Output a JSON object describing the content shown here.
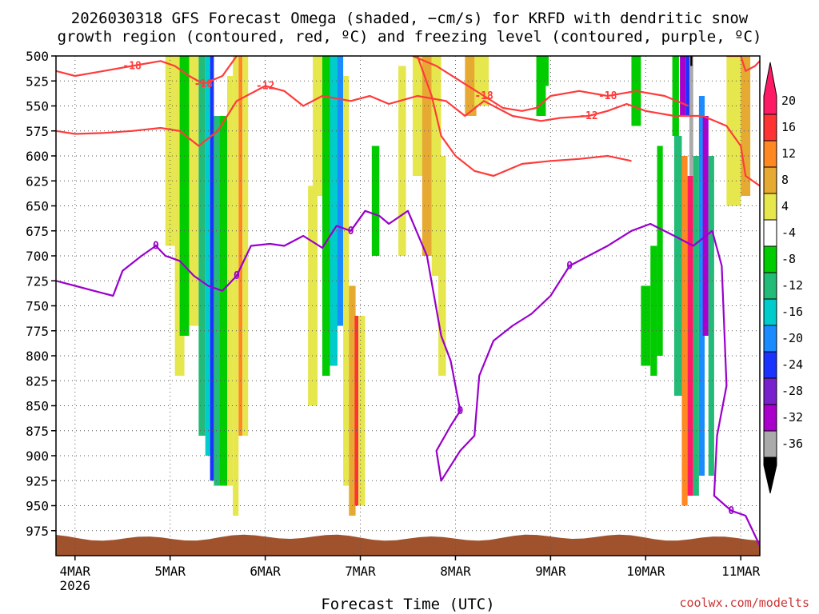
{
  "chart_data": {
    "type": "heatmap",
    "title_line1": "2026030318 GFS Forecast Omega (shaded, −cm/s) for KRFD with dendritic snow",
    "title_line2": "growth region (contoured, red, ºC) and freezing level (contoured, purple, ºC)",
    "xlabel": "Forecast Time (UTC)",
    "year_label": "2026",
    "credit": "coolwx.com/modelts",
    "x_unit": "days after 4MAR 00Z",
    "xlim": [
      -0.2,
      7.2
    ],
    "x_ticks": [
      {
        "value": 0,
        "label": "4MAR"
      },
      {
        "value": 1,
        "label": "5MAR"
      },
      {
        "value": 2,
        "label": "6MAR"
      },
      {
        "value": 3,
        "label": "7MAR"
      },
      {
        "value": 4,
        "label": "8MAR"
      },
      {
        "value": 5,
        "label": "9MAR"
      },
      {
        "value": 6,
        "label": "10MAR"
      },
      {
        "value": 7,
        "label": "11MAR"
      }
    ],
    "ylim": [
      500,
      1000
    ],
    "y_ticks": [
      "500",
      "525",
      "550",
      "575",
      "600",
      "625",
      "650",
      "675",
      "700",
      "725",
      "750",
      "775",
      "800",
      "825",
      "850",
      "875",
      "900",
      "925",
      "950",
      "975"
    ],
    "colorbar": {
      "labels": [
        "20",
        "16",
        "12",
        "8",
        "4",
        "-4",
        "-8",
        "-12",
        "-16",
        "-20",
        "-24",
        "-28",
        "-32",
        "-36"
      ],
      "colors": [
        "#ff1a66",
        "#ff3333",
        "#ff8822",
        "#e6aa33",
        "#e6e64d",
        "#ffffff",
        "#00cc00",
        "#22bb77",
        "#00cccc",
        "#1a8cff",
        "#1a33ff",
        "#7722cc",
        "#aa00cc",
        "#aaaaaa",
        "#000000"
      ]
    },
    "omega_cells": [
      {
        "t0": 0.95,
        "t1": 1.05,
        "p0": 500,
        "p1": 690,
        "v": 6
      },
      {
        "t0": 1.05,
        "t1": 1.15,
        "p0": 500,
        "p1": 820,
        "v": 5
      },
      {
        "t0": 1.1,
        "t1": 1.2,
        "p0": 500,
        "p1": 780,
        "v": -6
      },
      {
        "t0": 1.2,
        "t1": 1.3,
        "p0": 500,
        "p1": 770,
        "v": 6
      },
      {
        "t0": 1.3,
        "t1": 1.37,
        "p0": 500,
        "p1": 880,
        "v": -8
      },
      {
        "t0": 1.37,
        "t1": 1.42,
        "p0": 500,
        "p1": 900,
        "v": -14
      },
      {
        "t0": 1.42,
        "t1": 1.46,
        "p0": 500,
        "p1": 925,
        "v": -20
      },
      {
        "t0": 1.46,
        "t1": 1.52,
        "p0": 560,
        "p1": 930,
        "v": -10
      },
      {
        "t0": 1.52,
        "t1": 1.6,
        "p0": 560,
        "p1": 930,
        "v": -6
      },
      {
        "t0": 1.6,
        "t1": 1.66,
        "p0": 520,
        "p1": 930,
        "v": 6
      },
      {
        "t0": 1.66,
        "t1": 1.72,
        "p0": 500,
        "p1": 960,
        "v": 7
      },
      {
        "t0": 1.72,
        "t1": 1.76,
        "p0": 500,
        "p1": 880,
        "v": 14
      },
      {
        "t0": 1.76,
        "t1": 1.82,
        "p0": 500,
        "p1": 880,
        "v": 7
      },
      {
        "t0": 2.45,
        "t1": 2.55,
        "p0": 630,
        "p1": 850,
        "v": 6
      },
      {
        "t0": 2.5,
        "t1": 2.6,
        "p0": 500,
        "p1": 640,
        "v": 6
      },
      {
        "t0": 2.6,
        "t1": 2.68,
        "p0": 500,
        "p1": 820,
        "v": -6
      },
      {
        "t0": 2.68,
        "t1": 2.76,
        "p0": 500,
        "p1": 810,
        "v": -12
      },
      {
        "t0": 2.76,
        "t1": 2.82,
        "p0": 500,
        "p1": 770,
        "v": -16
      },
      {
        "t0": 2.82,
        "t1": 2.88,
        "p0": 520,
        "p1": 930,
        "v": 5
      },
      {
        "t0": 2.88,
        "t1": 2.95,
        "p0": 730,
        "p1": 960,
        "v": 8
      },
      {
        "t0": 2.94,
        "t1": 2.98,
        "p0": 760,
        "p1": 950,
        "v": 18
      },
      {
        "t0": 2.98,
        "t1": 3.05,
        "p0": 760,
        "p1": 950,
        "v": 6
      },
      {
        "t0": 3.12,
        "t1": 3.2,
        "p0": 590,
        "p1": 700,
        "v": -6
      },
      {
        "t0": 3.4,
        "t1": 3.48,
        "p0": 510,
        "p1": 700,
        "v": 5
      },
      {
        "t0": 3.55,
        "t1": 3.65,
        "p0": 500,
        "p1": 620,
        "v": 7
      },
      {
        "t0": 3.65,
        "t1": 3.75,
        "p0": 500,
        "p1": 700,
        "v": 10
      },
      {
        "t0": 3.75,
        "t1": 3.85,
        "p0": 500,
        "p1": 720,
        "v": 6
      },
      {
        "t0": 3.82,
        "t1": 3.9,
        "p0": 600,
        "p1": 820,
        "v": 5
      },
      {
        "t0": 4.1,
        "t1": 4.22,
        "p0": 500,
        "p1": 560,
        "v": 9
      },
      {
        "t0": 4.2,
        "t1": 4.35,
        "p0": 500,
        "p1": 550,
        "v": 6
      },
      {
        "t0": 4.85,
        "t1": 4.95,
        "p0": 500,
        "p1": 560,
        "v": -6
      },
      {
        "t0": 4.9,
        "t1": 4.98,
        "p0": 500,
        "p1": 530,
        "v": -6
      },
      {
        "t0": 5.85,
        "t1": 5.95,
        "p0": 500,
        "p1": 570,
        "v": -6
      },
      {
        "t0": 5.95,
        "t1": 6.05,
        "p0": 730,
        "p1": 810,
        "v": -6
      },
      {
        "t0": 6.05,
        "t1": 6.12,
        "p0": 690,
        "p1": 820,
        "v": -6
      },
      {
        "t0": 6.12,
        "t1": 6.18,
        "p0": 590,
        "p1": 800,
        "v": -6
      },
      {
        "t0": 6.28,
        "t1": 6.35,
        "p0": 500,
        "p1": 580,
        "v": -6
      },
      {
        "t0": 6.3,
        "t1": 6.38,
        "p0": 580,
        "p1": 840,
        "v": -8
      },
      {
        "t0": 6.36,
        "t1": 6.42,
        "p0": 500,
        "p1": 560,
        "v": -28
      },
      {
        "t0": 6.42,
        "t1": 6.46,
        "p0": 500,
        "p1": 560,
        "v": -20
      },
      {
        "t0": 6.38,
        "t1": 6.44,
        "p0": 600,
        "p1": 950,
        "v": 12
      },
      {
        "t0": 6.44,
        "t1": 6.5,
        "p0": 620,
        "p1": 940,
        "v": 20
      },
      {
        "t0": 6.46,
        "t1": 6.5,
        "p0": 500,
        "p1": 620,
        "v": -34
      },
      {
        "t0": 6.47,
        "t1": 6.49,
        "p0": 500,
        "p1": 510,
        "v": -38
      },
      {
        "t0": 6.5,
        "t1": 6.56,
        "p0": 600,
        "p1": 940,
        "v": -10
      },
      {
        "t0": 6.56,
        "t1": 6.62,
        "p0": 540,
        "p1": 920,
        "v": -18
      },
      {
        "t0": 6.6,
        "t1": 6.66,
        "p0": 560,
        "p1": 780,
        "v": -28
      },
      {
        "t0": 6.66,
        "t1": 6.72,
        "p0": 600,
        "p1": 920,
        "v": -10
      },
      {
        "t0": 6.85,
        "t1": 7.0,
        "p0": 500,
        "p1": 650,
        "v": 6
      },
      {
        "t0": 7.0,
        "t1": 7.1,
        "p0": 500,
        "p1": 640,
        "v": 10
      }
    ],
    "dgz_contours": [
      {
        "label": "-12",
        "points": [
          [
            -0.2,
            575
          ],
          [
            0.0,
            578
          ],
          [
            0.3,
            577
          ],
          [
            0.6,
            575
          ],
          [
            0.9,
            572
          ],
          [
            1.1,
            575
          ],
          [
            1.3,
            590
          ],
          [
            1.5,
            575
          ],
          [
            1.7,
            545
          ],
          [
            2.0,
            530
          ],
          [
            2.2,
            535
          ],
          [
            2.4,
            550
          ],
          [
            2.6,
            540
          ],
          [
            2.9,
            545
          ],
          [
            3.1,
            540
          ],
          [
            3.3,
            548
          ],
          [
            3.6,
            540
          ],
          [
            3.9,
            545
          ],
          [
            4.1,
            560
          ],
          [
            4.3,
            545
          ],
          [
            4.6,
            560
          ],
          [
            4.9,
            565
          ],
          [
            5.1,
            562
          ],
          [
            5.4,
            560
          ],
          [
            5.6,
            555
          ],
          [
            5.8,
            548
          ],
          [
            6.0,
            555
          ],
          [
            6.3,
            560
          ],
          [
            6.6,
            560
          ],
          [
            6.85,
            570
          ],
          [
            7.0,
            590
          ],
          [
            7.05,
            620
          ],
          [
            7.2,
            630
          ]
        ]
      },
      {
        "label": "-18",
        "points": [
          [
            -0.2,
            515
          ],
          [
            0.0,
            520
          ],
          [
            0.3,
            515
          ],
          [
            0.6,
            510
          ],
          [
            0.9,
            505
          ],
          [
            1.05,
            510
          ],
          [
            1.2,
            520
          ],
          [
            1.35,
            528
          ],
          [
            1.55,
            520
          ],
          [
            1.7,
            500
          ]
        ]
      },
      {
        "label": "-18",
        "points": [
          [
            3.55,
            500
          ],
          [
            3.8,
            510
          ],
          [
            4.05,
            525
          ],
          [
            4.3,
            540
          ],
          [
            4.5,
            552
          ],
          [
            4.7,
            555
          ],
          [
            4.85,
            552
          ],
          [
            5.0,
            540
          ],
          [
            5.3,
            535
          ],
          [
            5.6,
            540
          ],
          [
            5.9,
            535
          ],
          [
            6.2,
            540
          ],
          [
            6.45,
            550
          ]
        ]
      },
      {
        "label": "",
        "points": [
          [
            3.6,
            500
          ],
          [
            3.75,
            540
          ],
          [
            3.85,
            580
          ],
          [
            4.0,
            600
          ],
          [
            4.2,
            615
          ],
          [
            4.4,
            620
          ],
          [
            4.7,
            608
          ],
          [
            5.0,
            605
          ],
          [
            5.3,
            603
          ],
          [
            5.6,
            600
          ],
          [
            5.85,
            605
          ]
        ]
      },
      {
        "label": "",
        "points": [
          [
            6.85,
            500
          ],
          [
            7.0,
            500
          ],
          [
            7.05,
            515
          ],
          [
            7.15,
            510
          ],
          [
            7.2,
            505
          ]
        ]
      }
    ],
    "freezing_contour": {
      "label": "0",
      "points": [
        [
          -0.2,
          725
        ],
        [
          0.0,
          730
        ],
        [
          0.2,
          735
        ],
        [
          0.4,
          740
        ],
        [
          0.5,
          715
        ],
        [
          0.7,
          700
        ],
        [
          0.85,
          690
        ],
        [
          0.95,
          700
        ],
        [
          1.1,
          705
        ],
        [
          1.25,
          720
        ],
        [
          1.4,
          730
        ],
        [
          1.55,
          735
        ],
        [
          1.7,
          720
        ],
        [
          1.85,
          690
        ],
        [
          2.05,
          688
        ],
        [
          2.2,
          690
        ],
        [
          2.4,
          680
        ],
        [
          2.6,
          692
        ],
        [
          2.75,
          670
        ],
        [
          2.9,
          675
        ],
        [
          3.05,
          655
        ],
        [
          3.2,
          660
        ],
        [
          3.3,
          668
        ],
        [
          3.5,
          655
        ],
        [
          3.7,
          700
        ],
        [
          3.85,
          780
        ],
        [
          3.95,
          805
        ],
        [
          4.05,
          855
        ],
        [
          3.95,
          870
        ],
        [
          3.8,
          895
        ],
        [
          3.85,
          925
        ],
        [
          4.05,
          895
        ],
        [
          4.2,
          880
        ],
        [
          4.25,
          820
        ],
        [
          4.4,
          785
        ],
        [
          4.6,
          770
        ],
        [
          4.8,
          758
        ],
        [
          5.0,
          740
        ],
        [
          5.2,
          710
        ],
        [
          5.4,
          700
        ],
        [
          5.6,
          690
        ],
        [
          5.85,
          675
        ],
        [
          6.05,
          668
        ],
        [
          6.3,
          680
        ],
        [
          6.5,
          690
        ],
        [
          6.7,
          675
        ],
        [
          6.8,
          710
        ],
        [
          6.85,
          830
        ],
        [
          6.75,
          880
        ],
        [
          6.72,
          940
        ],
        [
          6.9,
          955
        ],
        [
          7.05,
          960
        ],
        [
          7.2,
          990
        ]
      ]
    },
    "terrain_top_hPa": 982
  }
}
